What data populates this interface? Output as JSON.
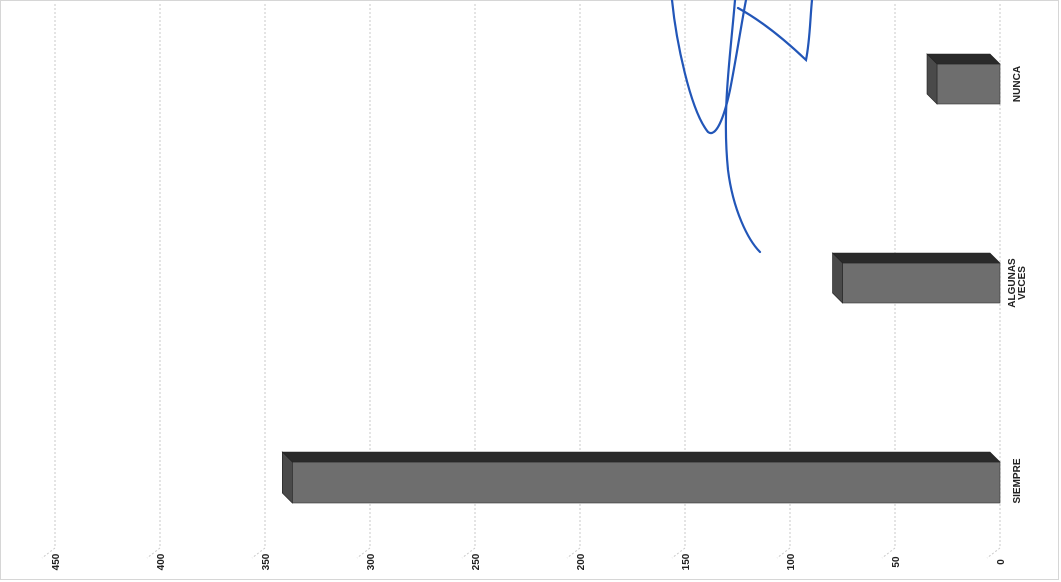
{
  "chart_data": {
    "type": "bar",
    "orientation": "horizontal",
    "three_d": true,
    "categories": [
      "SIEMPRE",
      "ALGUNAS VECES",
      "NUNCA"
    ],
    "values": [
      337,
      75,
      30
    ],
    "xlim": [
      0,
      450
    ],
    "ticks": [
      0,
      50,
      100,
      150,
      200,
      250,
      300,
      350,
      400,
      450
    ],
    "grid": true,
    "title": "",
    "xlabel": "",
    "ylabel": "",
    "colors": {
      "bar_front": "#6e6e6e",
      "bar_top": "#2a2a2a",
      "bar_side": "#4a4a4a",
      "signature_ink": "#2256b8",
      "grid": "#c9c9c9"
    }
  },
  "annotations": {
    "signature": "handwritten signature"
  }
}
